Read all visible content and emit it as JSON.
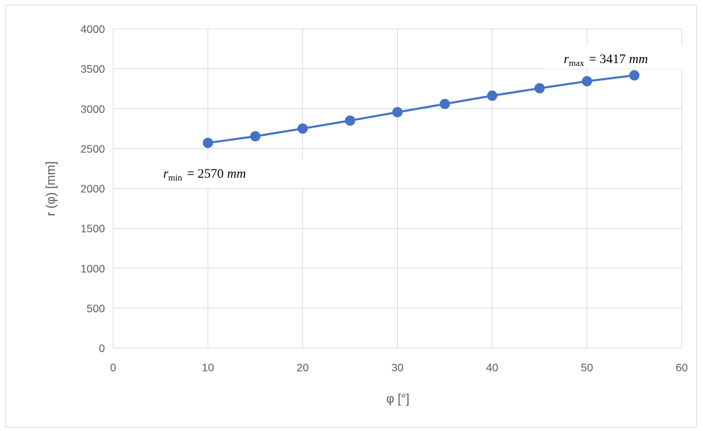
{
  "chart_data": {
    "type": "line",
    "title": "",
    "xlabel": "φ [°]",
    "ylabel": "r (φ) [mm]",
    "xlim": [
      0,
      60
    ],
    "ylim": [
      0,
      4000
    ],
    "x_ticks": [
      "0",
      "10",
      "20",
      "30",
      "40",
      "50",
      "60"
    ],
    "y_ticks": [
      "0",
      "500",
      "1000",
      "1500",
      "2000",
      "2500",
      "3000",
      "3500",
      "4000"
    ],
    "grid": true,
    "legend": "none",
    "series": [
      {
        "color": "#4472c4",
        "marker": "circle",
        "x": [
          10,
          15,
          20,
          25,
          30,
          35,
          40,
          45,
          50,
          55
        ],
        "y": [
          2570,
          2653,
          2750,
          2850,
          2955,
          3058,
          3162,
          3255,
          3343,
          3417
        ]
      }
    ],
    "annotations": [
      {
        "id": "min",
        "var": "r",
        "sub": "min",
        "eq": "= 2570",
        "unit": "mm"
      },
      {
        "id": "max",
        "var": "r",
        "sub": "max",
        "eq": "= 3417",
        "unit": "mm"
      }
    ],
    "colors": {
      "series": "#4472c4",
      "grid": "#d9d9d9",
      "text": "#595959"
    }
  }
}
